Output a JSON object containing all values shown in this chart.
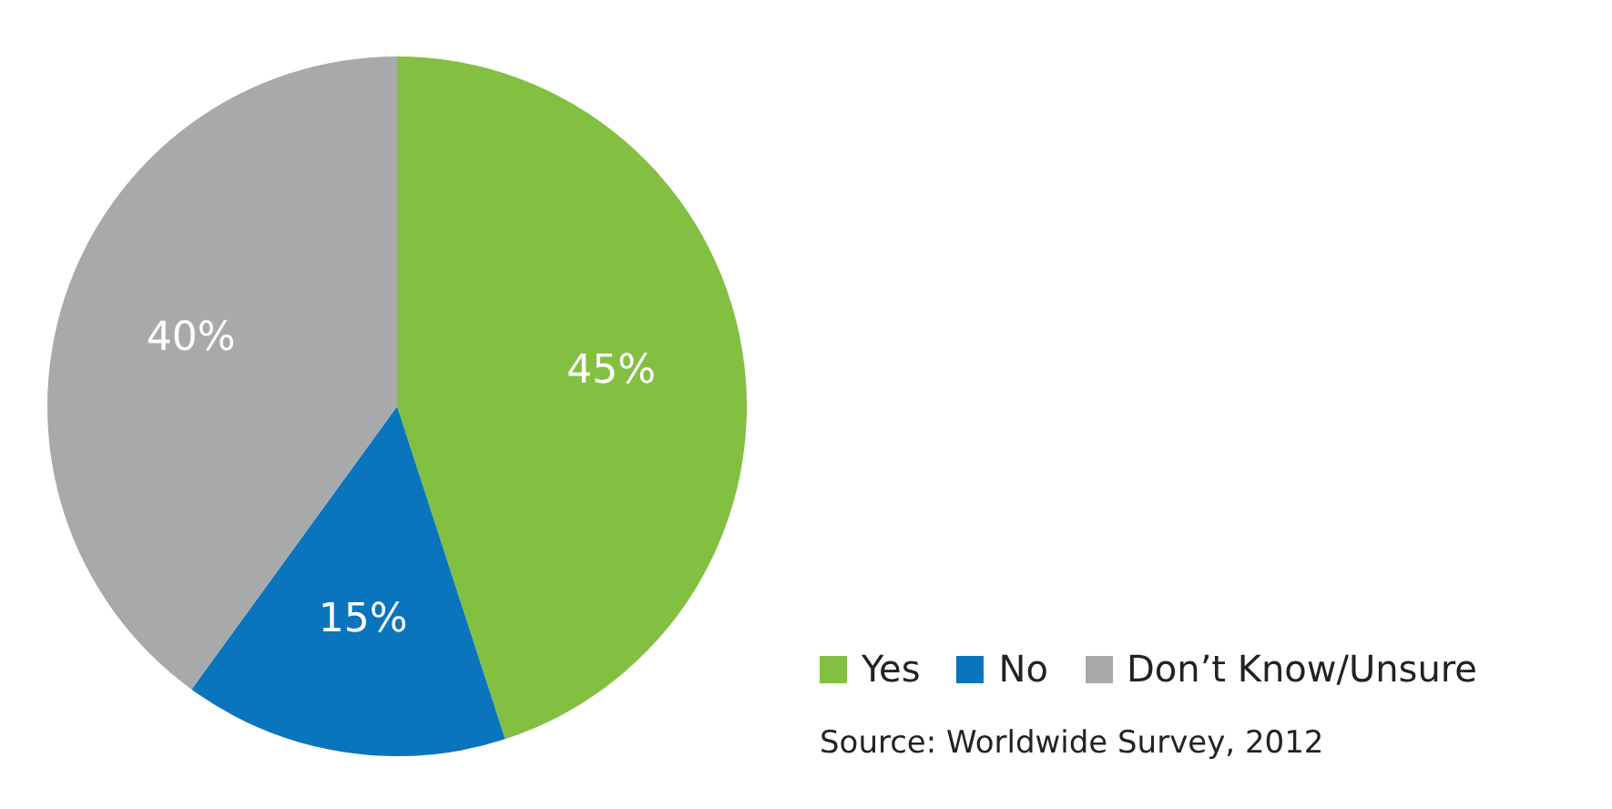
{
  "chart_data": {
    "type": "pie",
    "categories": [
      "Yes",
      "No",
      "Don’t Know/Unsure"
    ],
    "values": [
      45,
      15,
      40
    ],
    "colors": [
      "#83bf41",
      "#0a75bc",
      "#a7a9ab"
    ],
    "value_labels": [
      "45%",
      "15%",
      "40%"
    ],
    "legend": "bottom right",
    "annotations": [
      "Source: Worldwide Survey, 2012"
    ]
  }
}
